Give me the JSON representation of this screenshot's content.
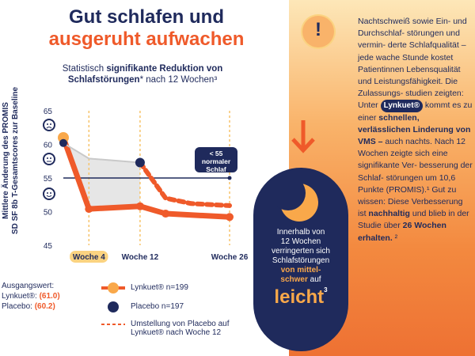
{
  "title": {
    "line1": "Gut schlafen und",
    "line2": "ausgeruht aufwachen"
  },
  "subtitle": {
    "part1": "Statistisch ",
    "bold1": "signifikante Reduktion von",
    "bold2": "Schlafstörungen",
    "part2": "* nach 12 Wochen³"
  },
  "y_axis_label": {
    "line1": "Mittlere Änderung des PROMIS",
    "line2": "SD SF 8b T-Gesamtscores zur Baseline"
  },
  "chart_data": {
    "type": "line",
    "title": "Statistisch signifikante Reduktion von Schlafstörungen* nach 12 Wochen³",
    "ylabel": "Mittlere Änderung des PROMIS SD SF 8b T-Gesamtscores zur Baseline",
    "ylim": [
      45,
      65
    ],
    "yticks": [
      45,
      50,
      55,
      60,
      65
    ],
    "x_ticks": [
      {
        "week": 4,
        "label": "Woche 4",
        "highlight": true
      },
      {
        "week": 12,
        "label": "Woche 12",
        "highlight": false
      },
      {
        "week": 26,
        "label": "Woche 26",
        "highlight": false
      }
    ],
    "xlim": [
      0,
      26
    ],
    "series": [
      {
        "name": "Lynkuet® n=199",
        "color": "#ef5a2a",
        "points": [
          [
            0,
            61.0
          ],
          [
            4,
            50.4
          ],
          [
            12,
            50.8
          ],
          [
            16,
            49.7
          ],
          [
            26,
            49.2
          ]
        ]
      },
      {
        "name": "Placebo n=197",
        "color": "#1f2a5c",
        "points": [
          [
            0,
            60.2
          ],
          [
            4,
            57.9
          ],
          [
            12,
            57.3
          ]
        ]
      },
      {
        "name": "Umstellung von Placebo auf Lynkuet® nach Woche 12",
        "color": "#ef5a2a",
        "dashed": true,
        "points": [
          [
            12,
            57.3
          ],
          [
            16,
            52.0
          ],
          [
            20,
            51.2
          ],
          [
            26,
            50.9
          ]
        ]
      }
    ],
    "reference_line": {
      "y": 55,
      "label": "< 55 normaler Schlaf"
    }
  },
  "legend": {
    "lynkuet": "Lynkuet® n=199",
    "placebo": "Placebo n=197",
    "switch_line1": "Umstellung von Placebo auf",
    "switch_line2": "Lynkuet® nach Woche 12"
  },
  "baseline": {
    "title": "Ausgangswert:",
    "lynkuet_label": "Lynkuet®: ",
    "lynkuet_value": "(61.0)",
    "placebo_label": "Placebo: ",
    "placebo_value": "(60.2)"
  },
  "bubble": {
    "line1": "< 55",
    "line2": "normaler",
    "line3": "Schlaf"
  },
  "badge": {
    "text1": "Innerhalb von",
    "text2": "12 Wochen",
    "text3": "verringerten sich",
    "text4": "Schlafstörungen",
    "em1": "von mittel-",
    "em2": "schwer",
    "text5": " auf",
    "big": "leicht",
    "sup": "3"
  },
  "right_text": {
    "p1": "Nachtschweiß sowie Ein- und Durchschlaf- störungen und vermin- derte Schlafqualität – jede wache Stunde kostet Patientinnen Lebensqualität und Leistungsfähigkeit. Die Zulassungs- studien zeigten:",
    "unter": "Unter ",
    "pill": "Lynkuet®",
    "p2": " kommt es zu einer",
    "bold1": "schnellen, verlässlichen Linderung von VMS –",
    "p3": " auch nachts. Nach 12 Wochen zeigte sich eine signifikante Ver- besserung der Schlaf- störungen um 10,6 Punkte (PROMIS).¹ Gut zu wissen: Diese Verbesserung ist ",
    "bold2": "nachhaltig",
    "p4": " und blieb in der Studie über ",
    "bold3": "26 Wochen erhalten.",
    "p5": " ²"
  },
  "icons": {
    "exclamation": "!",
    "faces": [
      "sad-face-icon",
      "neutral-face-icon",
      "smile-face-icon"
    ]
  }
}
